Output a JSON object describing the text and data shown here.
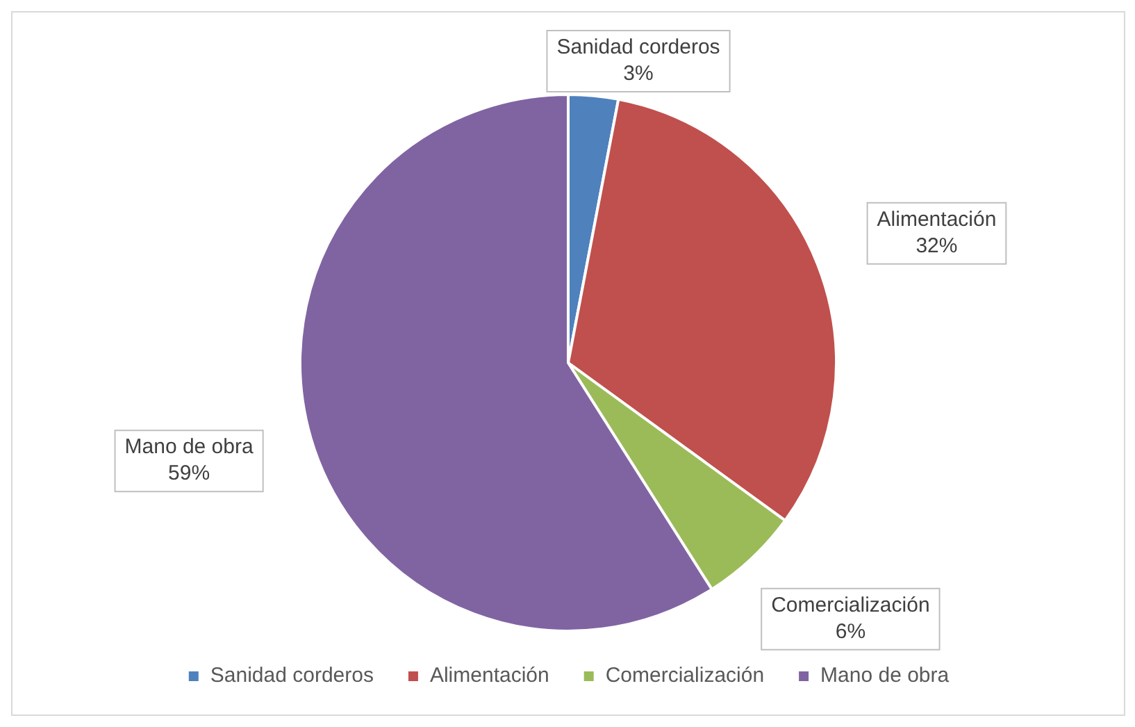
{
  "chart_data": {
    "type": "pie",
    "categories": [
      "Sanidad corderos",
      "Alimentación",
      "Comercialización",
      "Mano de obra"
    ],
    "values": [
      3,
      32,
      6,
      59
    ],
    "colors": [
      "#4f81bd",
      "#c0504d",
      "#9bbb59",
      "#8064a2"
    ],
    "value_labels": [
      "3%",
      "32%",
      "6%",
      "59%"
    ],
    "legend": "bottom"
  }
}
